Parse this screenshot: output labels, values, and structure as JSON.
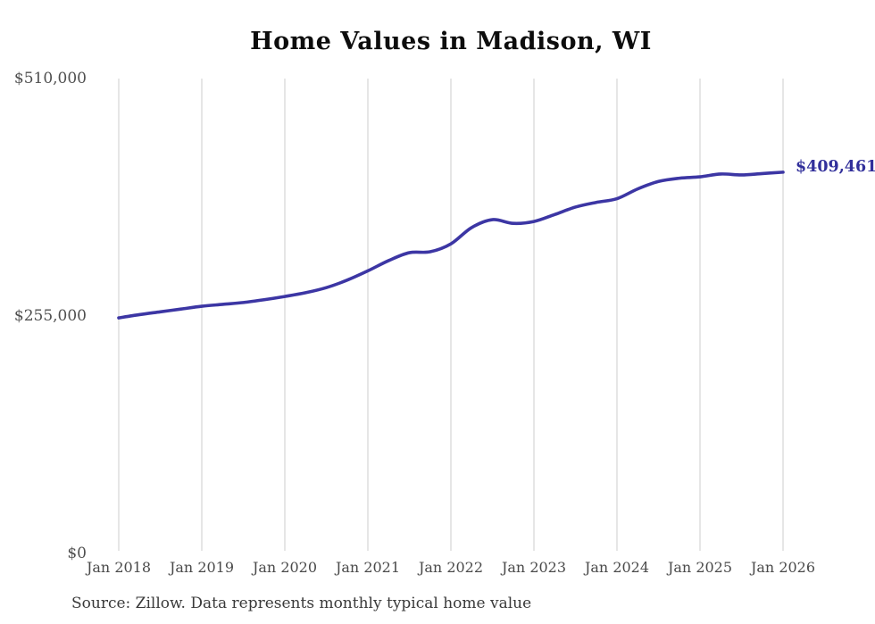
{
  "chart": {
    "title": "Home Values in Madison, WI",
    "end_label": "$409,461",
    "source": "Source: Zillow. Data represents monthly typical home value"
  },
  "colors": {
    "line": "#3c36a4",
    "end_label": "#32309b",
    "gridline": "#cccccc",
    "axis_text": "#4a4a4a",
    "title_text": "#0d0d0d"
  },
  "chart_data": {
    "type": "line",
    "title": "Home Values in Madison, WI",
    "xlabel": "",
    "ylabel": "",
    "ylim": [
      0,
      510000
    ],
    "y_ticks": [
      0,
      255000,
      510000
    ],
    "y_tick_labels": [
      "$0",
      "$255,000",
      "$510,000"
    ],
    "x_tick_labels": [
      "Jan 2018",
      "Jan 2019",
      "Jan 2020",
      "Jan 2021",
      "Jan 2022",
      "Jan 2023",
      "Jan 2024",
      "Jan 2025",
      "Jan 2026"
    ],
    "grid": "vertical-only",
    "legend": "none",
    "end_annotation": "$409,461",
    "series_name": "Typical home value",
    "x": [
      "2018-01",
      "2018-04",
      "2018-07",
      "2018-10",
      "2019-01",
      "2019-04",
      "2019-07",
      "2019-10",
      "2020-01",
      "2020-04",
      "2020-07",
      "2020-10",
      "2021-01",
      "2021-04",
      "2021-07",
      "2021-10",
      "2022-01",
      "2022-04",
      "2022-07",
      "2022-10",
      "2023-01",
      "2023-04",
      "2023-07",
      "2023-10",
      "2024-01",
      "2024-04",
      "2024-07",
      "2024-10",
      "2025-01",
      "2025-04",
      "2025-07",
      "2025-10",
      "2026-01"
    ],
    "values": [
      253000,
      256500,
      259500,
      262500,
      265500,
      267500,
      269500,
      272500,
      276000,
      280000,
      285500,
      293500,
      303500,
      314500,
      323000,
      324000,
      332500,
      350000,
      358500,
      354500,
      356500,
      364000,
      372000,
      377000,
      381000,
      391500,
      399500,
      403000,
      404500,
      407500,
      406500,
      408000,
      409461
    ]
  }
}
